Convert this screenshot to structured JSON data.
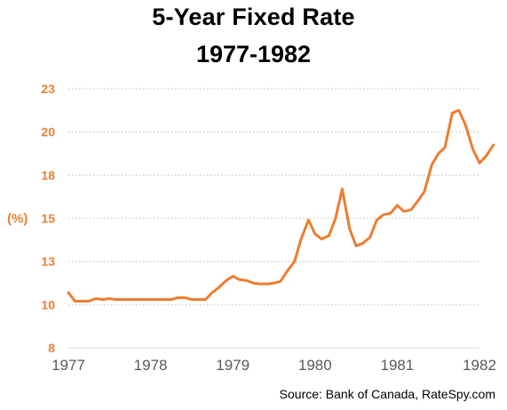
{
  "title": "5-Year Fixed Rate",
  "subtitle": "1977-1982",
  "source": "Source: Bank of Canada, RateSpy.com",
  "colors": {
    "line": "#ED7D31",
    "ytick": "#ED7D31",
    "grid": "#BFBFBF",
    "xtick": "#595959"
  },
  "chart_data": {
    "type": "line",
    "title": "5-Year Fixed Rate",
    "subtitle": "1977-1982",
    "ylabel": "(%)",
    "xlabel": "",
    "ylim": [
      8,
      23
    ],
    "xlim": [
      1977,
      1982
    ],
    "yticks": [
      "23",
      "20",
      "18",
      "15",
      "13",
      "10",
      "8"
    ],
    "ytick_values": [
      23,
      20.5,
      18,
      15.5,
      13,
      10.5,
      8
    ],
    "xticks": [
      "1977",
      "1978",
      "1979",
      "1980",
      "1981",
      "1982"
    ],
    "grid": "horizontal dotted",
    "series": [
      {
        "values": [
          [
            1977.0,
            11.2
          ],
          [
            1977.08,
            10.7
          ],
          [
            1977.17,
            10.7
          ],
          [
            1977.25,
            10.7
          ],
          [
            1977.33,
            10.85
          ],
          [
            1977.42,
            10.8
          ],
          [
            1977.5,
            10.85
          ],
          [
            1977.58,
            10.8
          ],
          [
            1977.67,
            10.8
          ],
          [
            1977.75,
            10.8
          ],
          [
            1977.83,
            10.8
          ],
          [
            1977.92,
            10.8
          ],
          [
            1978.0,
            10.8
          ],
          [
            1978.08,
            10.8
          ],
          [
            1978.17,
            10.8
          ],
          [
            1978.25,
            10.8
          ],
          [
            1978.33,
            10.9
          ],
          [
            1978.42,
            10.9
          ],
          [
            1978.5,
            10.8
          ],
          [
            1978.58,
            10.8
          ],
          [
            1978.67,
            10.8
          ],
          [
            1978.75,
            11.2
          ],
          [
            1978.83,
            11.5
          ],
          [
            1978.92,
            11.9
          ],
          [
            1979.0,
            12.15
          ],
          [
            1979.08,
            11.95
          ],
          [
            1979.17,
            11.9
          ],
          [
            1979.25,
            11.75
          ],
          [
            1979.33,
            11.7
          ],
          [
            1979.42,
            11.7
          ],
          [
            1979.5,
            11.75
          ],
          [
            1979.58,
            11.85
          ],
          [
            1979.67,
            12.5
          ],
          [
            1979.75,
            13.0
          ],
          [
            1979.83,
            14.3
          ],
          [
            1979.92,
            15.4
          ],
          [
            1980.0,
            14.6
          ],
          [
            1980.08,
            14.3
          ],
          [
            1980.17,
            14.5
          ],
          [
            1980.25,
            15.5
          ],
          [
            1980.33,
            17.2
          ],
          [
            1980.42,
            14.9
          ],
          [
            1980.5,
            13.9
          ],
          [
            1980.58,
            14.05
          ],
          [
            1980.67,
            14.4
          ],
          [
            1980.75,
            15.4
          ],
          [
            1980.83,
            15.7
          ],
          [
            1980.92,
            15.8
          ],
          [
            1981.0,
            16.25
          ],
          [
            1981.08,
            15.9
          ],
          [
            1981.17,
            16.0
          ],
          [
            1981.25,
            16.5
          ],
          [
            1981.33,
            17.05
          ],
          [
            1981.42,
            18.6
          ],
          [
            1981.5,
            19.25
          ],
          [
            1981.58,
            19.6
          ],
          [
            1981.67,
            21.6
          ],
          [
            1981.75,
            21.75
          ],
          [
            1981.83,
            20.9
          ],
          [
            1981.92,
            19.5
          ],
          [
            1982.0,
            18.7
          ],
          [
            1982.08,
            19.1
          ],
          [
            1982.17,
            19.75
          ]
        ]
      }
    ]
  }
}
